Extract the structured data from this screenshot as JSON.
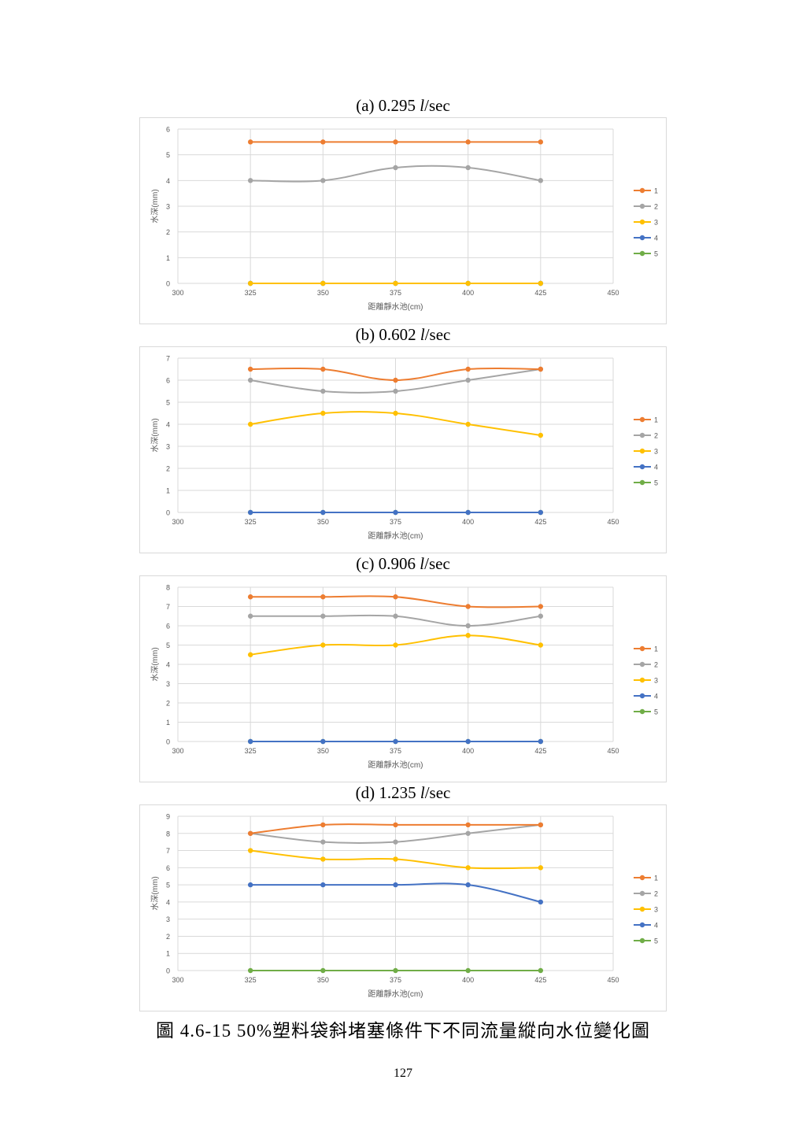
{
  "legend_colors": {
    "1": "#ED7D31",
    "2": "#A5A5A5",
    "3": "#FFC000",
    "4": "#4472C4",
    "5": "#70AD47"
  },
  "caption": "圖 4.6-15  50%塑料袋斜堵塞條件下不同流量縱向水位變化圖",
  "page_number": "127",
  "chart_data": [
    {
      "type": "line",
      "title_prefix": "(a) 0.295 ",
      "title_unit_italic": "l",
      "title_suffix": "/sec",
      "xlabel": "距離靜水池(cm)",
      "ylabel": "水深(mm)",
      "x": [
        325,
        350,
        375,
        400,
        425
      ],
      "xlim": [
        300,
        450
      ],
      "xticks": [
        300,
        325,
        350,
        375,
        400,
        425,
        450
      ],
      "ylim": [
        0,
        6
      ],
      "yticks": [
        0,
        1,
        2,
        3,
        4,
        5,
        6
      ],
      "grid": true,
      "legend_position": "right",
      "smooth": true,
      "series": [
        {
          "name": "1",
          "values": [
            5.5,
            5.5,
            5.5,
            5.5,
            5.5
          ]
        },
        {
          "name": "2",
          "values": [
            4,
            4,
            4.5,
            4.5,
            4
          ]
        },
        {
          "name": "3",
          "values": [
            0,
            0,
            0,
            0,
            0
          ]
        },
        {
          "name": "4",
          "values": [
            0,
            0,
            0,
            0,
            0
          ]
        },
        {
          "name": "5",
          "values": [
            0,
            0,
            0,
            0,
            0
          ]
        }
      ]
    },
    {
      "type": "line",
      "title_prefix": "(b) 0.602 ",
      "title_unit_italic": "l",
      "title_suffix": "/sec",
      "xlabel": "距離靜水池(cm)",
      "ylabel": "水深(mm)",
      "x": [
        325,
        350,
        375,
        400,
        425
      ],
      "xlim": [
        300,
        450
      ],
      "xticks": [
        300,
        325,
        350,
        375,
        400,
        425,
        450
      ],
      "ylim": [
        0,
        7
      ],
      "yticks": [
        0,
        1,
        2,
        3,
        4,
        5,
        6,
        7
      ],
      "grid": true,
      "legend_position": "right",
      "smooth": true,
      "series": [
        {
          "name": "1",
          "values": [
            6.5,
            6.5,
            6,
            6.5,
            6.5
          ]
        },
        {
          "name": "2",
          "values": [
            6,
            5.5,
            5.5,
            6,
            6.5
          ]
        },
        {
          "name": "3",
          "values": [
            4,
            4.5,
            4.5,
            4,
            3.5
          ]
        },
        {
          "name": "4",
          "values": [
            0,
            0,
            0,
            0,
            0
          ]
        },
        {
          "name": "5",
          "values": [
            0,
            0,
            0,
            0,
            0
          ]
        }
      ]
    },
    {
      "type": "line",
      "title_prefix": "(c) 0.906 ",
      "title_unit_italic": "l",
      "title_suffix": "/sec",
      "xlabel": "距離靜水池(cm)",
      "ylabel": "水深(mm)",
      "x": [
        325,
        350,
        375,
        400,
        425
      ],
      "xlim": [
        300,
        450
      ],
      "xticks": [
        300,
        325,
        350,
        375,
        400,
        425,
        450
      ],
      "ylim": [
        0,
        8
      ],
      "yticks": [
        0,
        1,
        2,
        3,
        4,
        5,
        6,
        7,
        8
      ],
      "grid": true,
      "legend_position": "right",
      "smooth": true,
      "series": [
        {
          "name": "1",
          "values": [
            7.5,
            7.5,
            7.5,
            7,
            7
          ]
        },
        {
          "name": "2",
          "values": [
            6.5,
            6.5,
            6.5,
            6,
            6.5
          ]
        },
        {
          "name": "3",
          "values": [
            4.5,
            5,
            5,
            5.5,
            5
          ]
        },
        {
          "name": "4",
          "values": [
            0,
            0,
            0,
            0,
            0
          ]
        },
        {
          "name": "5",
          "values": [
            0,
            0,
            0,
            0,
            0
          ]
        }
      ]
    },
    {
      "type": "line",
      "title_prefix": "(d) 1.235 ",
      "title_unit_italic": "l",
      "title_suffix": "/sec",
      "xlabel": "距離靜水池(cm)",
      "ylabel": "水深(mm)",
      "x": [
        325,
        350,
        375,
        400,
        425
      ],
      "xlim": [
        300,
        450
      ],
      "xticks": [
        300,
        325,
        350,
        375,
        400,
        425,
        450
      ],
      "ylim": [
        0,
        9
      ],
      "yticks": [
        0,
        1,
        2,
        3,
        4,
        5,
        6,
        7,
        8,
        9
      ],
      "grid": true,
      "legend_position": "right",
      "smooth": true,
      "series": [
        {
          "name": "1",
          "values": [
            8,
            8.5,
            8.5,
            8.5,
            8.5
          ]
        },
        {
          "name": "2",
          "values": [
            8,
            7.5,
            7.5,
            8,
            8.5
          ]
        },
        {
          "name": "3",
          "values": [
            7,
            6.5,
            6.5,
            6,
            6
          ]
        },
        {
          "name": "4",
          "values": [
            5,
            5,
            5,
            5,
            4
          ]
        },
        {
          "name": "5",
          "values": [
            0,
            0,
            0,
            0,
            0
          ]
        }
      ]
    }
  ]
}
